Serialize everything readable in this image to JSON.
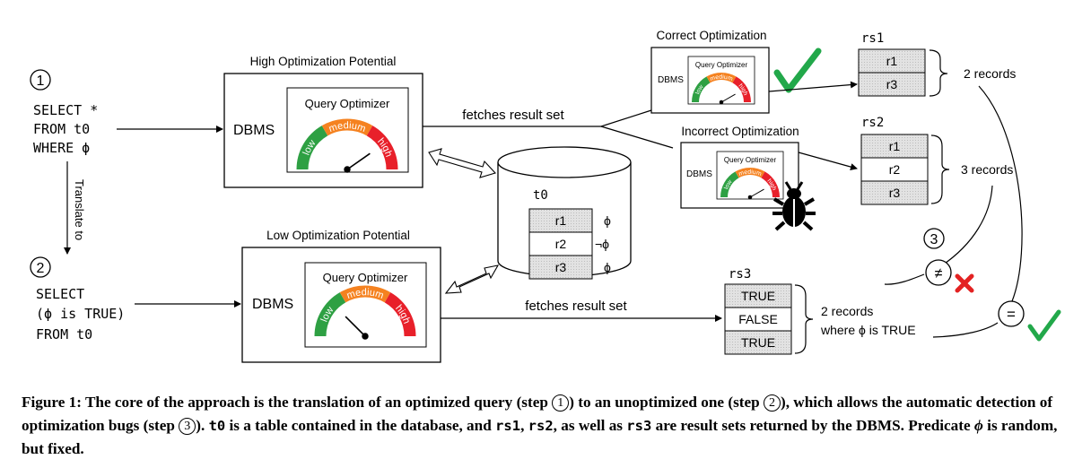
{
  "steps": {
    "step1": "1",
    "step2": "2",
    "step3": "3"
  },
  "query_optimized": {
    "line1": "SELECT *",
    "line2": "FROM t0",
    "line3": "WHERE ϕ"
  },
  "query_unoptimized": {
    "line1": "SELECT",
    "line2": "(ϕ is TRUE)",
    "line3": "FROM t0"
  },
  "translate_label": "Translate to",
  "high_potential": {
    "title": "High Optimization Potential",
    "dbms": "DBMS",
    "optimizer": "Query Optimizer"
  },
  "low_potential": {
    "title": "Low Optimization Potential",
    "dbms": "DBMS",
    "optimizer": "Query Optimizer"
  },
  "gauge_labels": {
    "low": "low",
    "medium": "medium",
    "high": "high"
  },
  "fetches_label_top": "fetches result set",
  "fetches_label_bottom": "fetches result set",
  "correct": {
    "title": "Correct Optimization",
    "dbms": "DBMS",
    "optimizer": "Query Optimizer"
  },
  "incorrect": {
    "title": "Incorrect Optimization",
    "dbms": "DBMS",
    "optimizer": "Query Optimizer"
  },
  "table_t0": {
    "name": "t0",
    "rows": [
      "r1",
      "r2",
      "r3"
    ],
    "preds": [
      "ϕ",
      "¬ϕ",
      "ϕ"
    ]
  },
  "rs1": {
    "name": "rs1",
    "rows": [
      "r1",
      "r3"
    ],
    "label": "2 records"
  },
  "rs2": {
    "name": "rs2",
    "rows": [
      "r1",
      "r2",
      "r3"
    ],
    "label": "3 records"
  },
  "rs3": {
    "name": "rs3",
    "rows": [
      "TRUE",
      "FALSE",
      "TRUE"
    ],
    "label1": "2 records",
    "label2": "where ϕ is TRUE"
  },
  "compare": {
    "neq": "≠",
    "eq": "="
  },
  "colors": {
    "check": "#22a84a",
    "cross": "#e32222",
    "gauge_low": "#2ea043",
    "gauge_medium": "#f58220",
    "gauge_high": "#e8202a",
    "hatch": "#d4d4d4"
  },
  "caption": {
    "prefix": "Figure 1: The core of the approach is the translation of an optimized query (step ",
    "mid1": ") to an unoptimized one (step ",
    "mid2": "), which allows the automatic detection of optimization bugs (step ",
    "mid3": "). ",
    "code_t0": "t0",
    "mid4": " is a table contained in the database, and ",
    "code_rs1": "rs1",
    "sep1": ", ",
    "code_rs2": "rs2",
    "mid5": ", as well as ",
    "code_rs3": "rs3",
    "mid6": " are result sets returned by the DBMS. Predicate ",
    "phi": "ϕ",
    "suffix": " is random, but fixed."
  }
}
